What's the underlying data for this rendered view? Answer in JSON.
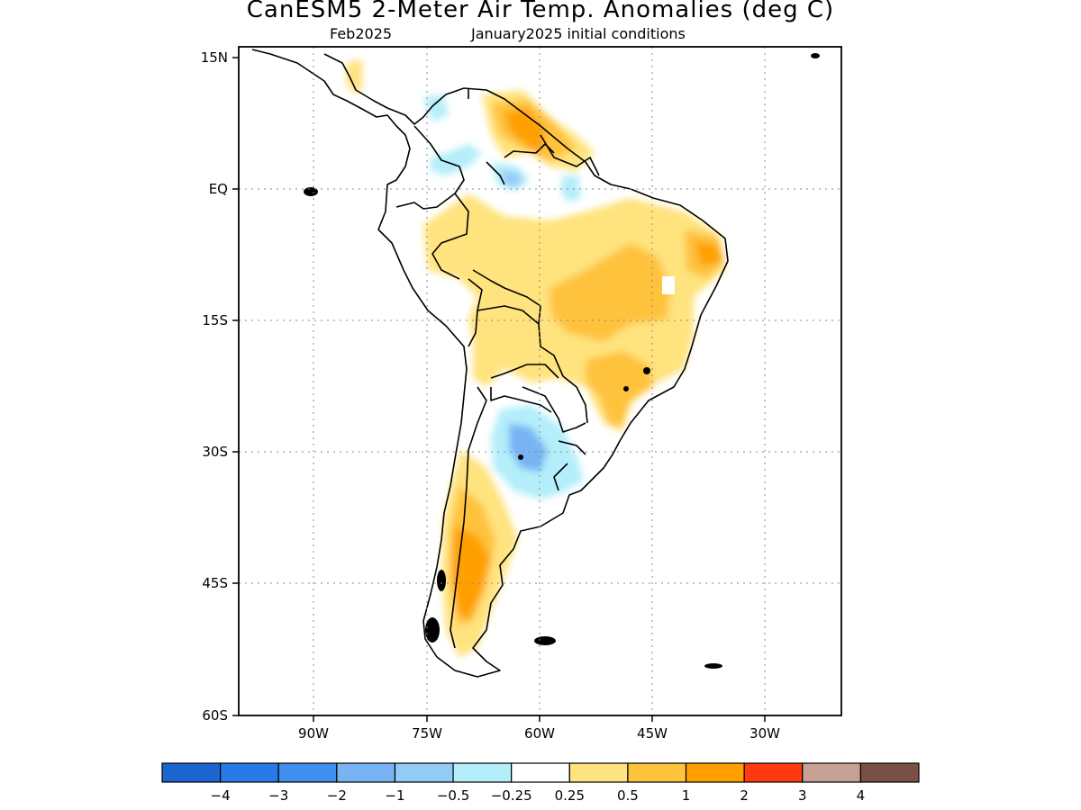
{
  "title": "CanESM5 2-Meter Air Temp. Anomalies (deg C)",
  "subtitle_left": "Feb2025",
  "subtitle_right": "January2025 initial conditions",
  "map": {
    "lat_labels": [
      "15N",
      "EQ",
      "15S",
      "30S",
      "45S",
      "60S"
    ],
    "lon_labels": [
      "90W",
      "75W",
      "60W",
      "45W",
      "30W"
    ]
  },
  "colorbar": {
    "colors": [
      "#1a65d0",
      "#2a79e8",
      "#3f8fef",
      "#78b4f4",
      "#93cbf7",
      "#b3eefa",
      "#ffffff",
      "#ffe37e",
      "#ffc23d",
      "#ffa000",
      "#ff3a10",
      "#c8a196",
      "#7a5044"
    ],
    "labels": [
      "−4",
      "−3",
      "−2",
      "−1",
      "−0.5",
      "−0.25",
      "0.25",
      "0.5",
      "1",
      "2",
      "3",
      "4"
    ]
  }
}
